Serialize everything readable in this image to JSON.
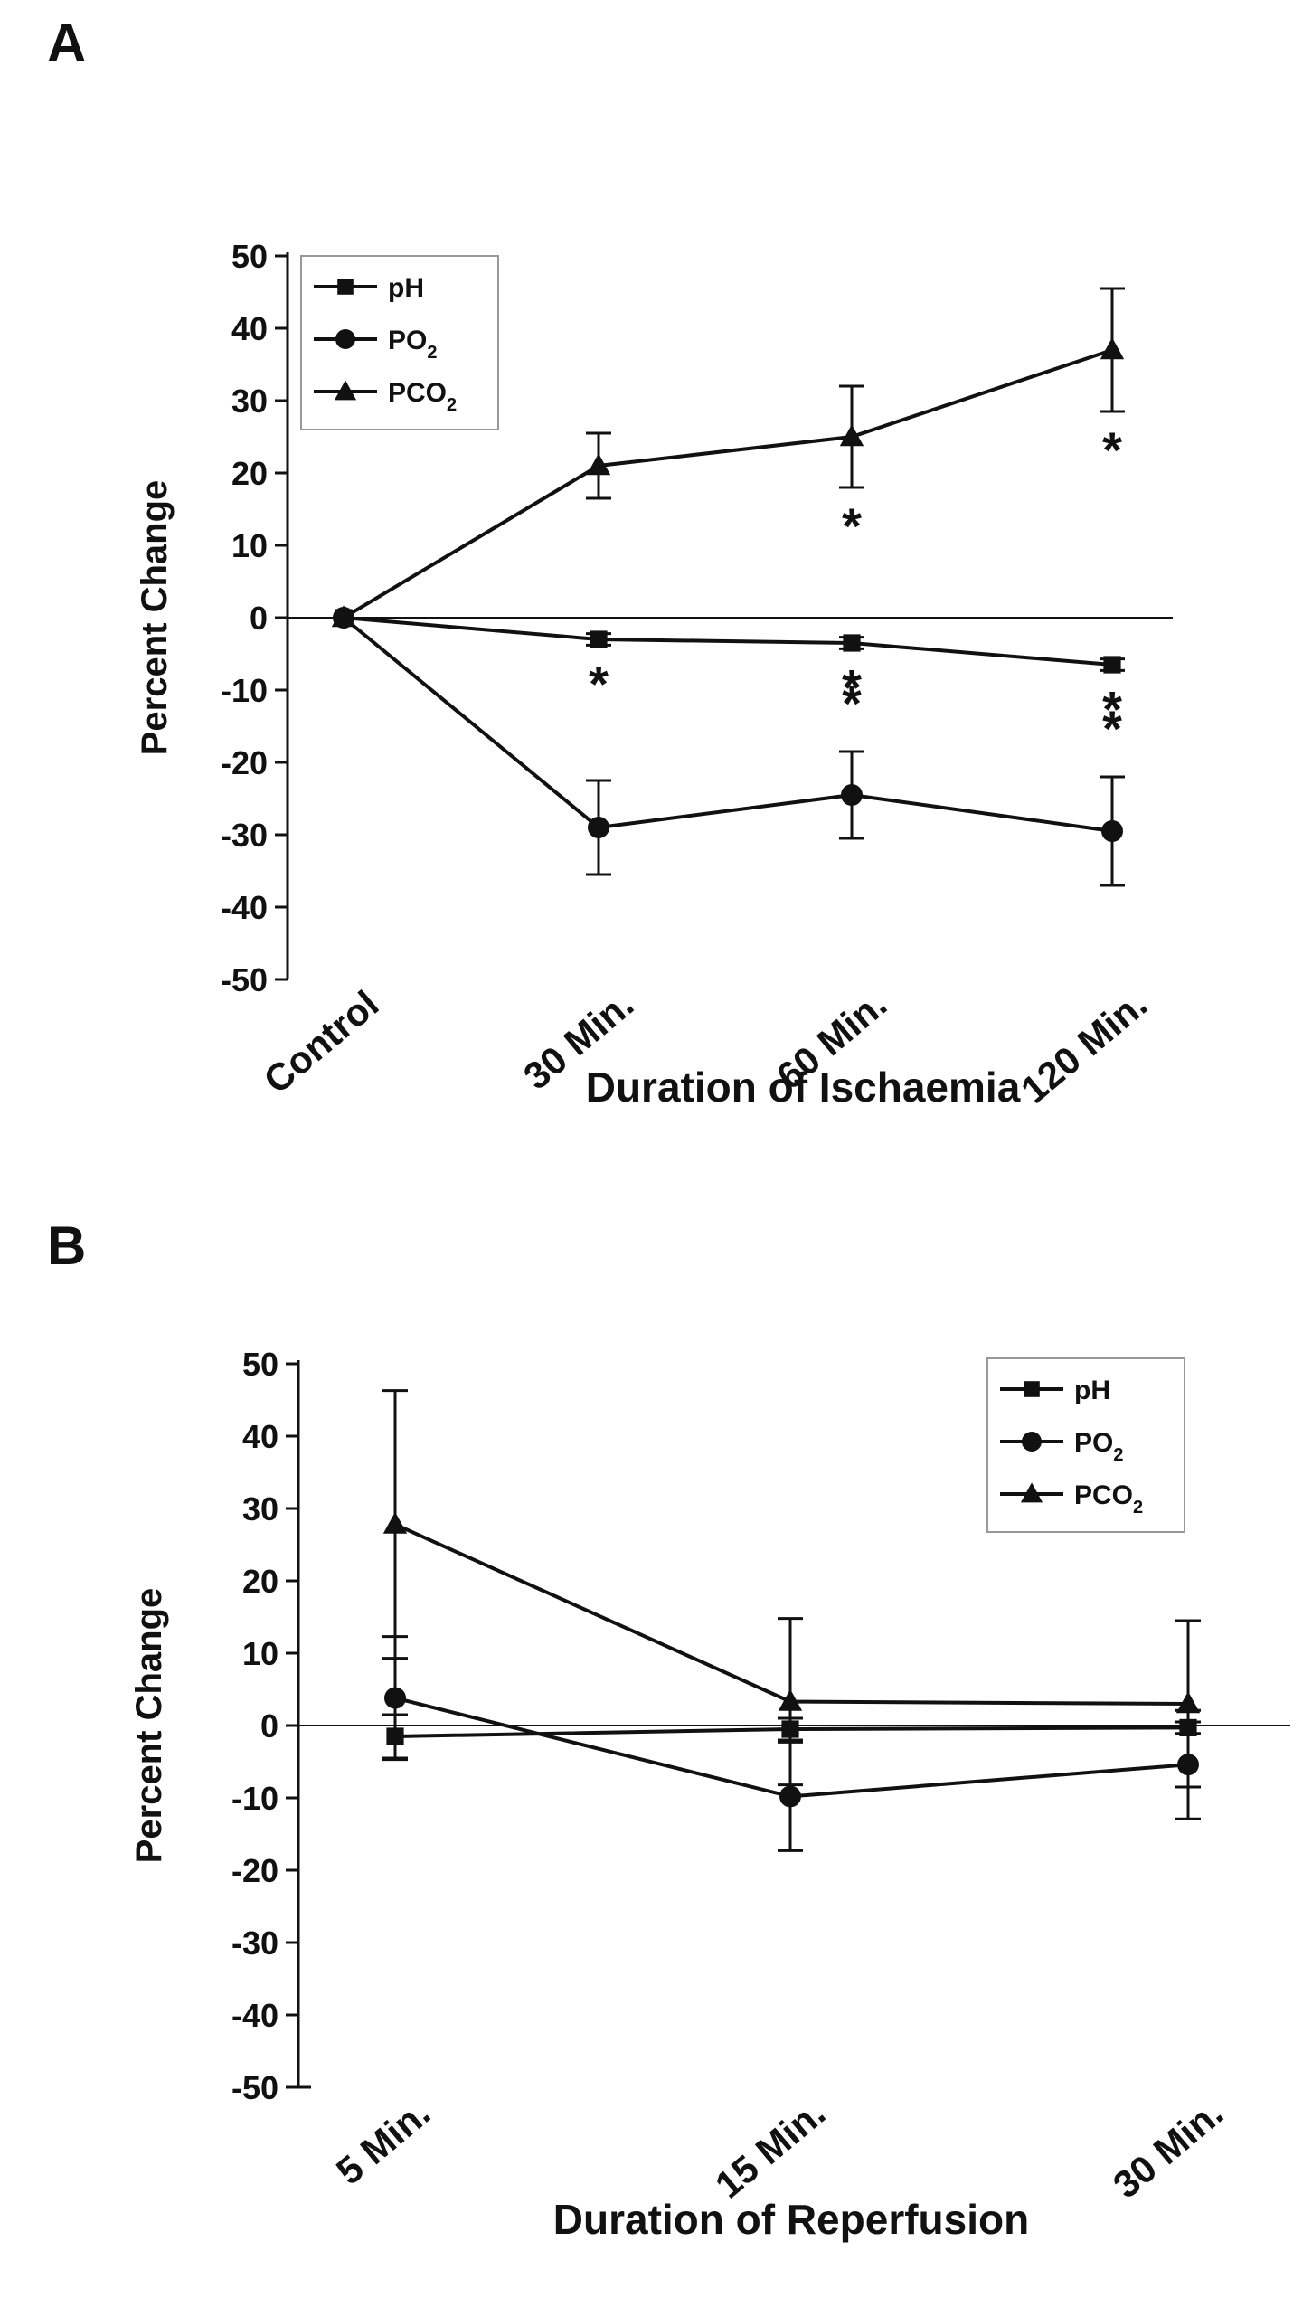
{
  "chart_data": [
    {
      "type": "line",
      "panel": "A",
      "xlabel": "Duration of Ischaemia",
      "ylabel": "Percent Change",
      "categories": [
        "Control",
        "30 Min.",
        "60 Min.",
        "120 Min."
      ],
      "ylim": [
        -50,
        50
      ],
      "yticks": [
        -50,
        -40,
        -30,
        -20,
        -10,
        0,
        10,
        20,
        30,
        40,
        50
      ],
      "legend_position": "top-left",
      "series": [
        {
          "name": "pH",
          "marker": "square",
          "legend": {
            "base": "pH",
            "sub": ""
          },
          "values": [
            0,
            -3,
            -3.5,
            -6.5
          ],
          "errors": [
            0,
            0.8,
            0.8,
            0.8
          ],
          "stars": [
            false,
            true,
            true,
            true
          ]
        },
        {
          "name": "PO2",
          "marker": "circle",
          "legend": {
            "base": "PO",
            "sub": "2"
          },
          "values": [
            0,
            -29,
            -24.5,
            -29.5
          ],
          "errors": [
            0,
            6.5,
            6,
            7.5
          ],
          "stars": [
            false,
            false,
            true,
            true
          ]
        },
        {
          "name": "PCO2",
          "marker": "triangle",
          "legend": {
            "base": "PCO",
            "sub": "2"
          },
          "values": [
            0,
            21,
            25,
            37
          ],
          "errors": [
            0,
            4.5,
            7,
            8.5
          ],
          "stars": [
            false,
            false,
            true,
            true
          ]
        }
      ],
      "annotations": {
        "star_symbol": "*"
      }
    },
    {
      "type": "line",
      "panel": "B",
      "xlabel": "Duration of Reperfusion",
      "ylabel": "Percent Change",
      "categories": [
        "5 Min.",
        "15 Min.",
        "30 Min."
      ],
      "ylim": [
        -50,
        50
      ],
      "yticks": [
        -50,
        -40,
        -30,
        -20,
        -10,
        0,
        10,
        20,
        30,
        40,
        50
      ],
      "legend_position": "top-right",
      "series": [
        {
          "name": "pH",
          "marker": "square",
          "legend": {
            "base": "pH",
            "sub": ""
          },
          "values": [
            -1.5,
            -0.5,
            -0.3
          ],
          "errors": [
            3,
            1.5,
            0.8
          ]
        },
        {
          "name": "PO2",
          "marker": "circle",
          "legend": {
            "base": "PO",
            "sub": "2"
          },
          "values": [
            3.8,
            -9.8,
            -5.4
          ],
          "errors": [
            8.5,
            7.5,
            7.5
          ]
        },
        {
          "name": "PCO2",
          "marker": "triangle",
          "legend": {
            "base": "PCO",
            "sub": "2"
          },
          "values": [
            27.8,
            3.3,
            3.0
          ],
          "errors": [
            18.5,
            11.5,
            11.5
          ]
        }
      ]
    }
  ]
}
